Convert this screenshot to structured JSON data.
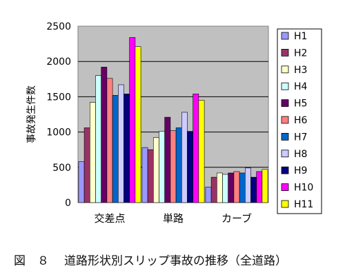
{
  "chart_data": {
    "type": "bar",
    "title": "",
    "xlabel": "",
    "ylabel": "事故発生件数",
    "ylim": [
      0,
      2500
    ],
    "yticks": [
      0,
      500,
      1000,
      1500,
      2000,
      2500
    ],
    "grid": true,
    "legend_position": "right",
    "categories": [
      "交差点",
      "単路",
      "カーブ"
    ],
    "series": [
      {
        "name": "H1",
        "values": [
          580,
          780,
          220
        ],
        "color": "#9999ff"
      },
      {
        "name": "H2",
        "values": [
          1060,
          750,
          360
        ],
        "color": "#993366"
      },
      {
        "name": "H3",
        "values": [
          1420,
          920,
          420
        ],
        "color": "#ffffcc"
      },
      {
        "name": "H4",
        "values": [
          1800,
          1010,
          400
        ],
        "color": "#ccffff"
      },
      {
        "name": "H5",
        "values": [
          1920,
          1210,
          420
        ],
        "color": "#660066"
      },
      {
        "name": "H6",
        "values": [
          1760,
          1020,
          440
        ],
        "color": "#ff8080"
      },
      {
        "name": "H7",
        "values": [
          1520,
          1060,
          420
        ],
        "color": "#0066cc"
      },
      {
        "name": "H8",
        "values": [
          1670,
          1280,
          490
        ],
        "color": "#ccccff"
      },
      {
        "name": "H9",
        "values": [
          1540,
          1010,
          360
        ],
        "color": "#000080"
      },
      {
        "name": "H10",
        "values": [
          2340,
          1540,
          440
        ],
        "color": "#ff00ff"
      },
      {
        "name": "H11",
        "values": [
          2210,
          1450,
          470
        ],
        "color": "#ffff00"
      }
    ],
    "plot_background": "#c0c0c0"
  },
  "caption": {
    "figure_label": "図　８",
    "text": "道路形状別スリップ事故の推移（全道路）"
  }
}
